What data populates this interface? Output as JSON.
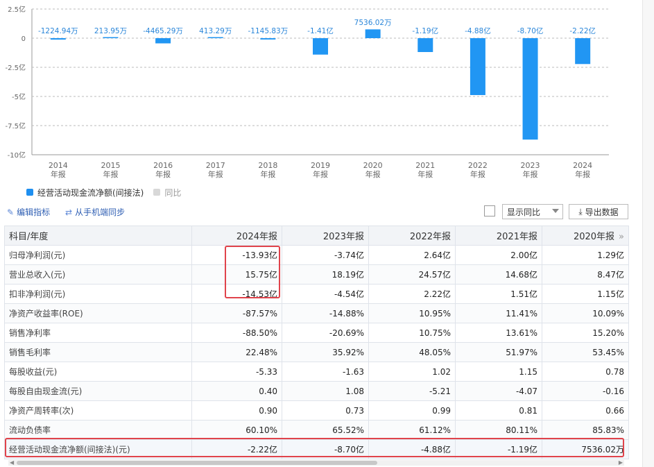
{
  "chart_data": {
    "type": "bar",
    "categories": [
      "2014",
      "2015",
      "2016",
      "2017",
      "2018",
      "2019",
      "2020",
      "2021",
      "2022",
      "2023",
      "2024"
    ],
    "category_sublabel": "年报",
    "values_yi": [
      -0.122494,
      0.021395,
      -0.446529,
      0.041329,
      -0.114583,
      -1.41,
      0.753602,
      -1.19,
      -4.88,
      -8.7,
      -2.22
    ],
    "data_labels": [
      "-1224.94万",
      "213.95万",
      "-4465.29万",
      "413.29万",
      "-1145.83万",
      "-1.41亿",
      "7536.02万",
      "-1.19亿",
      "-4.88亿",
      "-8.70亿",
      "-2.22亿"
    ],
    "yticks": [
      2.5,
      0,
      -2.5,
      -5,
      -7.5,
      -10
    ],
    "ytick_labels": [
      "2.5亿",
      "0",
      "-2.5亿",
      "-5亿",
      "-7.5亿",
      "-10亿"
    ],
    "ylim": [
      -10,
      2.5
    ],
    "grid": true,
    "bar_color": "#2196f3",
    "label_color": "#2a86d9",
    "series": [
      {
        "name": "经营活动现金流净额(间接法)",
        "color": "#1e8ff0"
      },
      {
        "name": "同比",
        "color": "#d8d8d8"
      }
    ]
  },
  "toolbar": {
    "edit_label": "编辑指标",
    "sync_label": "从手机端同步",
    "show_yoy_label": "显示同比",
    "export_label": "导出数据"
  },
  "table": {
    "header_first": "科目/年度",
    "columns": [
      "2024年报",
      "2023年报",
      "2022年报",
      "2021年报",
      "2020年报"
    ],
    "more_icon": "»",
    "rows": [
      {
        "label": "归母净利润(元)",
        "values": [
          "-13.93亿",
          "-3.74亿",
          "2.64亿",
          "2.00亿",
          "1.29亿"
        ]
      },
      {
        "label": "营业总收入(元)",
        "values": [
          "15.75亿",
          "18.19亿",
          "24.57亿",
          "14.68亿",
          "8.47亿"
        ]
      },
      {
        "label": "扣非净利润(元)",
        "values": [
          "-14.53亿",
          "-4.54亿",
          "2.22亿",
          "1.51亿",
          "1.15亿"
        ]
      },
      {
        "label": "净资产收益率(ROE)",
        "values": [
          "-87.57%",
          "-14.88%",
          "10.95%",
          "11.41%",
          "10.09%"
        ]
      },
      {
        "label": "销售净利率",
        "values": [
          "-88.50%",
          "-20.69%",
          "10.75%",
          "13.61%",
          "15.20%"
        ]
      },
      {
        "label": "销售毛利率",
        "values": [
          "22.48%",
          "35.92%",
          "48.05%",
          "51.97%",
          "53.45%"
        ]
      },
      {
        "label": "每股收益(元)",
        "values": [
          "-5.33",
          "-1.63",
          "1.02",
          "1.15",
          "0.78"
        ]
      },
      {
        "label": "每股自由现金流(元)",
        "values": [
          "0.40",
          "1.08",
          "-5.21",
          "-4.07",
          "-0.16"
        ]
      },
      {
        "label": "净资产周转率(次)",
        "values": [
          "0.90",
          "0.73",
          "0.99",
          "0.81",
          "0.66"
        ]
      },
      {
        "label": "流动负债率",
        "values": [
          "60.10%",
          "65.52%",
          "61.12%",
          "80.11%",
          "85.83%"
        ]
      },
      {
        "label": "经营活动现金流净额(间接法)(元)",
        "values": [
          "-2.22亿",
          "-8.70亿",
          "-4.88亿",
          "-1.19亿",
          "7536.02万"
        ]
      }
    ]
  },
  "highlight_color": "#e0434b"
}
